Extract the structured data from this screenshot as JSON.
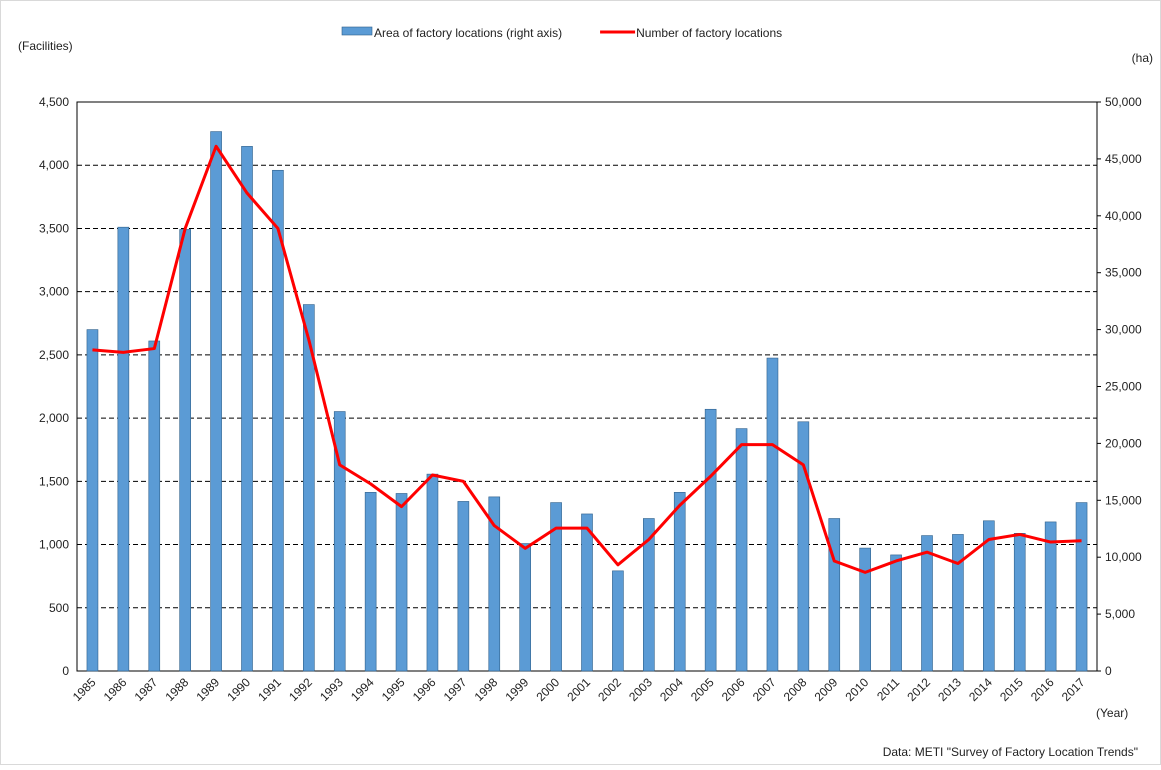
{
  "chart_data": {
    "type": "bar-line",
    "y_label": "(Facilities)",
    "y2_label": "(ha)",
    "x_label": "(Year)",
    "source": "Data: METI \"Survey of Factory Location Trends\"",
    "categories": [
      "1985",
      "1986",
      "1987",
      "1988",
      "1989",
      "1990",
      "1991",
      "1992",
      "1993",
      "1994",
      "1995",
      "1996",
      "1997",
      "1998",
      "1999",
      "2000",
      "2001",
      "2002",
      "2003",
      "2004",
      "2005",
      "2006",
      "2007",
      "2008",
      "2009",
      "2010",
      "2011",
      "2012",
      "2013",
      "2014",
      "2015",
      "2016",
      "2017"
    ],
    "series": [
      {
        "name": "Area of factory locations (right axis)",
        "type": "bar",
        "axis": "y2",
        "color": "#5b9bd5",
        "values": [
          30000,
          39000,
          29000,
          38800,
          47400,
          46100,
          44000,
          32200,
          22800,
          15700,
          15600,
          17300,
          14900,
          15300,
          11200,
          14800,
          13800,
          8800,
          13400,
          15700,
          23000,
          21300,
          27500,
          21900,
          13400,
          10800,
          10200,
          11900,
          12000,
          13200,
          12100,
          13100,
          14800
        ]
      },
      {
        "name": "Number of factory locations",
        "type": "line",
        "color": "#ff0000",
        "values": [
          2540,
          2520,
          2550,
          3500,
          4150,
          3780,
          3500,
          2620,
          1630,
          1480,
          1300,
          1550,
          1500,
          1150,
          970,
          1130,
          1130,
          840,
          1040,
          1310,
          1540,
          1790,
          1790,
          1630,
          870,
          780,
          870,
          940,
          850,
          1040,
          1080,
          1020,
          1030
        ]
      }
    ],
    "ylim": [
      0,
      4500
    ],
    "yticks": [
      0,
      500,
      {
        "value": 1000,
        "label": "1,000"
      },
      {
        "value": 1500,
        "label": "1,500"
      },
      {
        "value": 2000,
        "label": "2,000"
      },
      {
        "value": 2500,
        "label": "2,500"
      },
      {
        "value": 3000,
        "label": "3,000"
      },
      {
        "value": 3500,
        "label": "3,500"
      },
      {
        "value": 4000,
        "label": "4,000"
      },
      {
        "value": 4500,
        "label": "4,500"
      }
    ],
    "y2lim": [
      0,
      50000
    ],
    "y2ticks": [
      0,
      {
        "value": 5000,
        "label": "5,000"
      },
      {
        "value": 10000,
        "label": "10,000"
      },
      {
        "value": 15000,
        "label": "15,000"
      },
      {
        "value": 20000,
        "label": "20,000"
      },
      {
        "value": 25000,
        "label": "25,000"
      },
      {
        "value": 30000,
        "label": "30,000"
      },
      {
        "value": 35000,
        "label": "35,000"
      },
      {
        "value": 40000,
        "label": "40,000"
      },
      {
        "value": 45000,
        "label": "45,000"
      },
      {
        "value": 50000,
        "label": "50,000"
      }
    ],
    "grid": true,
    "legend": "top"
  }
}
